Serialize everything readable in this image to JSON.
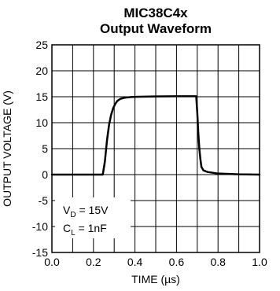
{
  "chart_data": {
    "type": "line",
    "title": [
      "MIC38C4x",
      "Output Waveform"
    ],
    "xlabel": "TIME (µs)",
    "ylabel": "OUTPUT VOLTAGE (V)",
    "xlim": [
      0.0,
      1.0
    ],
    "ylim": [
      -15,
      25
    ],
    "xticks": [
      0.0,
      0.2,
      0.4,
      0.6,
      0.8,
      1.0
    ],
    "xtick_labels": [
      "0.0",
      "0.2",
      "0.4",
      "0.6",
      "0.8",
      "1.0"
    ],
    "yticks": [
      -15,
      -10,
      -5,
      0,
      5,
      10,
      15,
      20,
      25
    ],
    "ytick_labels": [
      "-15",
      "-10",
      "-5",
      "0",
      "5",
      "10",
      "15",
      "20",
      "25"
    ],
    "x_minor_step": 0.1,
    "grid": true,
    "series": [
      {
        "color": "#000000",
        "x": [
          0.0,
          0.245,
          0.255,
          0.265,
          0.275,
          0.285,
          0.295,
          0.305,
          0.315,
          0.33,
          0.35,
          0.38,
          0.42,
          0.5,
          0.6,
          0.695,
          0.7,
          0.705,
          0.71,
          0.715,
          0.72,
          0.73,
          0.75,
          0.8,
          0.9,
          1.0
        ],
        "y": [
          0.0,
          0.0,
          2.5,
          6.5,
          9.5,
          11.5,
          12.8,
          13.6,
          14.2,
          14.6,
          14.8,
          14.95,
          15.0,
          15.05,
          15.1,
          15.1,
          12.0,
          8.0,
          5.0,
          3.0,
          1.5,
          0.8,
          0.5,
          0.2,
          0.05,
          0.0
        ]
      }
    ],
    "annotations": [
      {
        "main": "V",
        "sub": "D",
        "rest": " = 15V"
      },
      {
        "main": "C",
        "sub": "L",
        "rest": " = 1nF"
      }
    ]
  }
}
